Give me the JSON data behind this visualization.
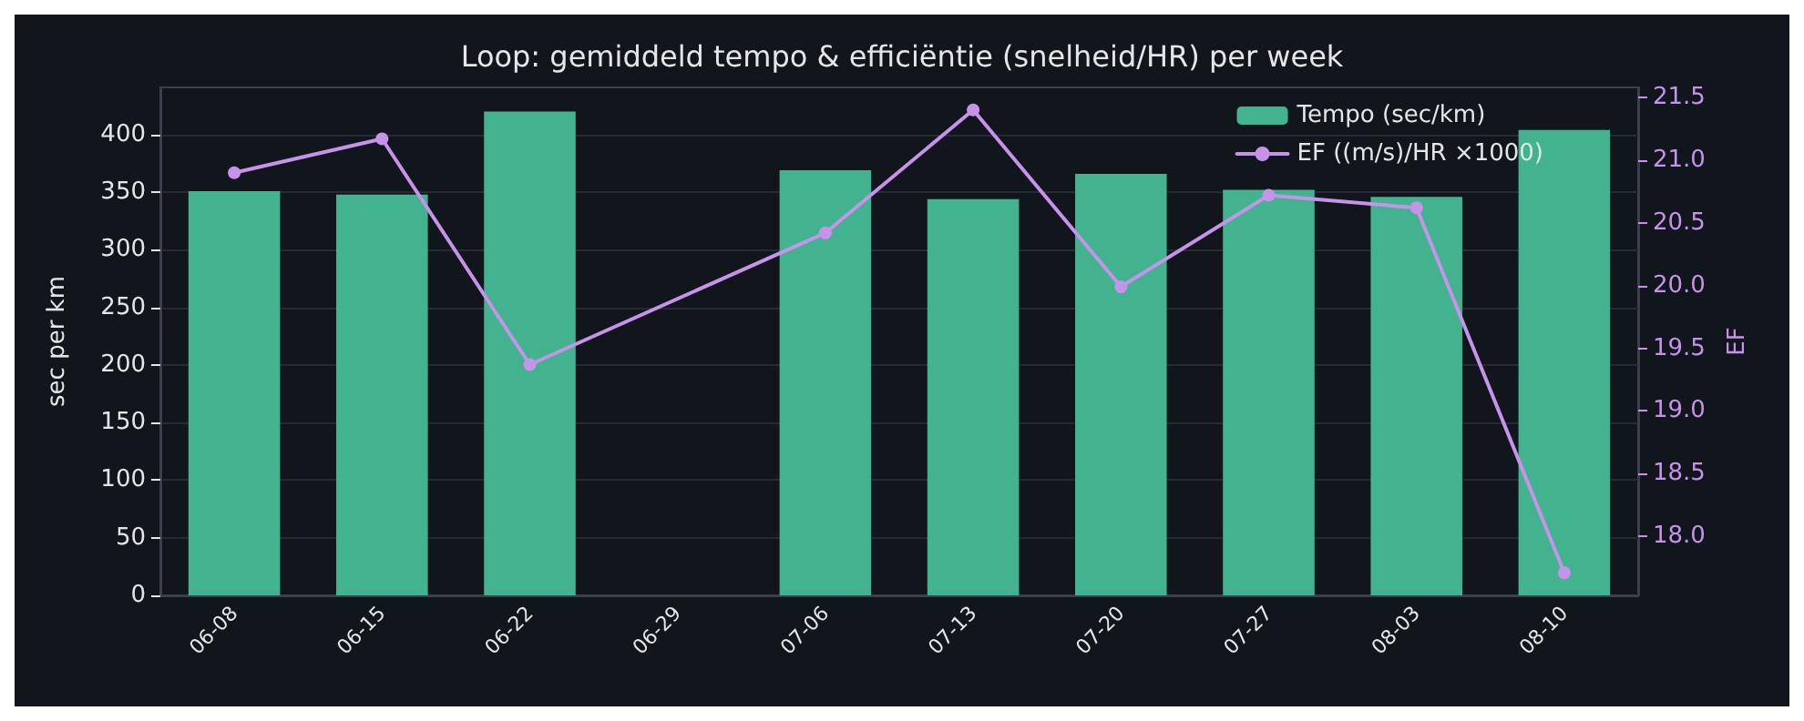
{
  "chart_data": {
    "type": "bar",
    "title": "Loop: gemiddeld tempo & efficiëntie (snelheid/HR) per week",
    "categories": [
      "06-08",
      "06-15",
      "06-22",
      "06-29",
      "07-06",
      "07-13",
      "07-20",
      "07-27",
      "08-03",
      "08-10"
    ],
    "series": [
      {
        "name": "Tempo (sec/km)",
        "color": "#43b38f",
        "values": [
          351,
          348,
          420,
          null,
          369,
          344,
          366,
          352,
          346,
          404
        ]
      },
      {
        "name": "EF ((m/s)/HR ×1000)",
        "type": "line",
        "axis": "y2",
        "color": "#c792ea",
        "marker": "circle",
        "values": [
          20.9,
          21.17,
          19.37,
          null,
          20.42,
          21.4,
          19.99,
          20.72,
          20.62,
          17.71
        ]
      }
    ],
    "ylabel": "sec per km",
    "y2label": "EF",
    "ylim": [
      0,
      441
    ],
    "yticks": [
      0,
      50,
      100,
      150,
      200,
      250,
      300,
      350,
      400
    ],
    "y2lim": [
      17.53,
      21.58
    ],
    "y2ticks": [
      {
        "value": 18,
        "label": "18.0"
      },
      {
        "value": 18.5,
        "label": "18.5"
      },
      {
        "value": 19,
        "label": "19.0"
      },
      {
        "value": 19.5,
        "label": "19.5"
      },
      {
        "value": 20,
        "label": "20.0"
      },
      {
        "value": 20.5,
        "label": "20.5"
      },
      {
        "value": 21,
        "label": "21.0"
      },
      {
        "value": 21.5,
        "label": "21.5"
      }
    ],
    "grid": "y",
    "legend": "top right"
  }
}
